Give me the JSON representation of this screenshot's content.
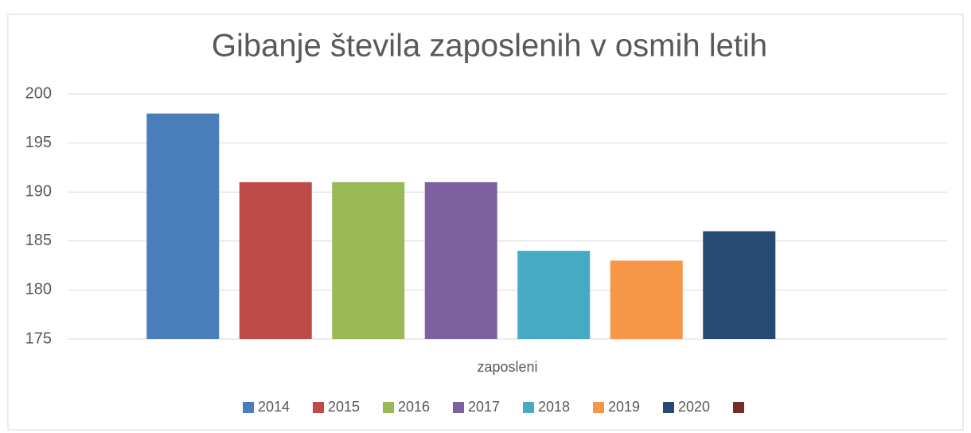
{
  "chart_data": {
    "type": "bar",
    "title": "Gibanje števila zaposlenih v osmih letih",
    "categories": [
      "zaposleni"
    ],
    "series": [
      {
        "name": "2014",
        "color": "#4a7ebb",
        "values": [
          198
        ]
      },
      {
        "name": "2015",
        "color": "#be4b48",
        "values": [
          191
        ]
      },
      {
        "name": "2016",
        "color": "#98b954",
        "values": [
          191
        ]
      },
      {
        "name": "2017",
        "color": "#7d60a0",
        "values": [
          191
        ]
      },
      {
        "name": "2018",
        "color": "#46aac5",
        "values": [
          184
        ]
      },
      {
        "name": "2019",
        "color": "#f79646",
        "values": [
          183
        ]
      },
      {
        "name": "2020",
        "color": "#264a74",
        "values": [
          186
        ]
      },
      {
        "name": null,
        "color": "#772c2a",
        "values": [
          null
        ]
      }
    ],
    "ylim": [
      175,
      200
    ],
    "yticks": [
      175,
      180,
      185,
      190,
      195,
      200
    ],
    "grid": true,
    "legend": "bottom"
  }
}
